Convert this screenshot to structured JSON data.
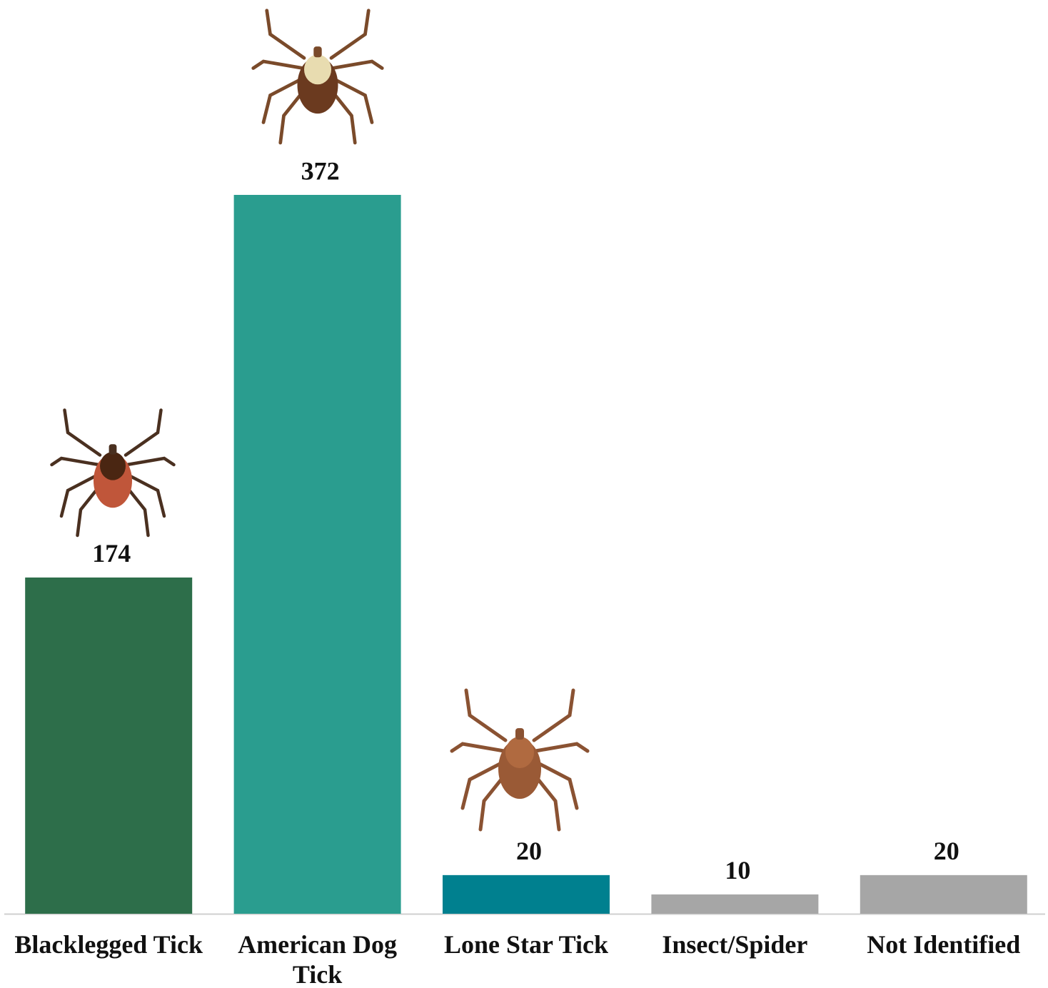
{
  "chart_data": {
    "type": "bar",
    "categories": [
      "Blacklegged Tick",
      "American Dog Tick",
      "Lone Star Tick",
      "Insect/Spider",
      "Not Identified"
    ],
    "values": [
      174,
      372,
      20,
      10,
      20
    ],
    "colors": [
      "#2d6e4a",
      "#2a9d8f",
      "#00808f",
      "#a6a6a6",
      "#a6a6a6"
    ]
  }
}
